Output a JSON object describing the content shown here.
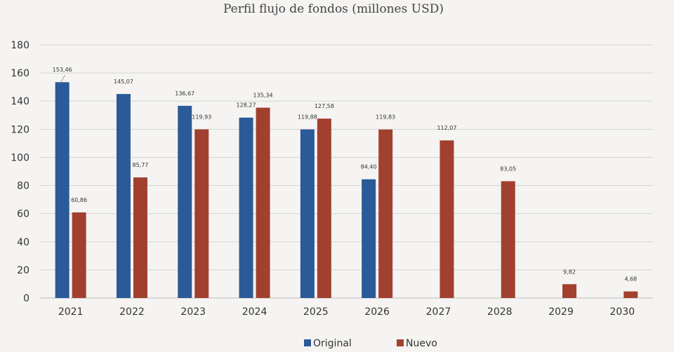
{
  "chart_data": {
    "type": "bar",
    "title": "Perfil flujo de fondos (millones USD)",
    "xlabel": "",
    "ylabel": "",
    "categories": [
      "2021",
      "2022",
      "2023",
      "2024",
      "2025",
      "2026",
      "2027",
      "2028",
      "2029",
      "2030"
    ],
    "series": [
      {
        "name": "Original",
        "color": "#2a5a98",
        "values": [
          153.46,
          145.07,
          136.67,
          128.27,
          119.88,
          84.4,
          null,
          null,
          null,
          null
        ],
        "labels": [
          "153,46",
          "145,07",
          "136,67",
          "128,27",
          "119,88",
          "84,40",
          "",
          "",
          "",
          ""
        ]
      },
      {
        "name": "Nuevo",
        "color": "#a2402f",
        "values": [
          60.86,
          85.77,
          119.93,
          135.34,
          127.58,
          119.83,
          112.07,
          83.05,
          9.82,
          4.68
        ],
        "labels": [
          "60,86",
          "85,77",
          "119,93",
          "135,34",
          "127,58",
          "119,83",
          "112,07",
          "83,05",
          "9,82",
          "4,68"
        ]
      }
    ],
    "ylim": [
      0,
      180
    ],
    "yticks": [
      0,
      20,
      40,
      60,
      80,
      100,
      120,
      140,
      160,
      180
    ],
    "grid": true,
    "legend_position": "bottom"
  }
}
